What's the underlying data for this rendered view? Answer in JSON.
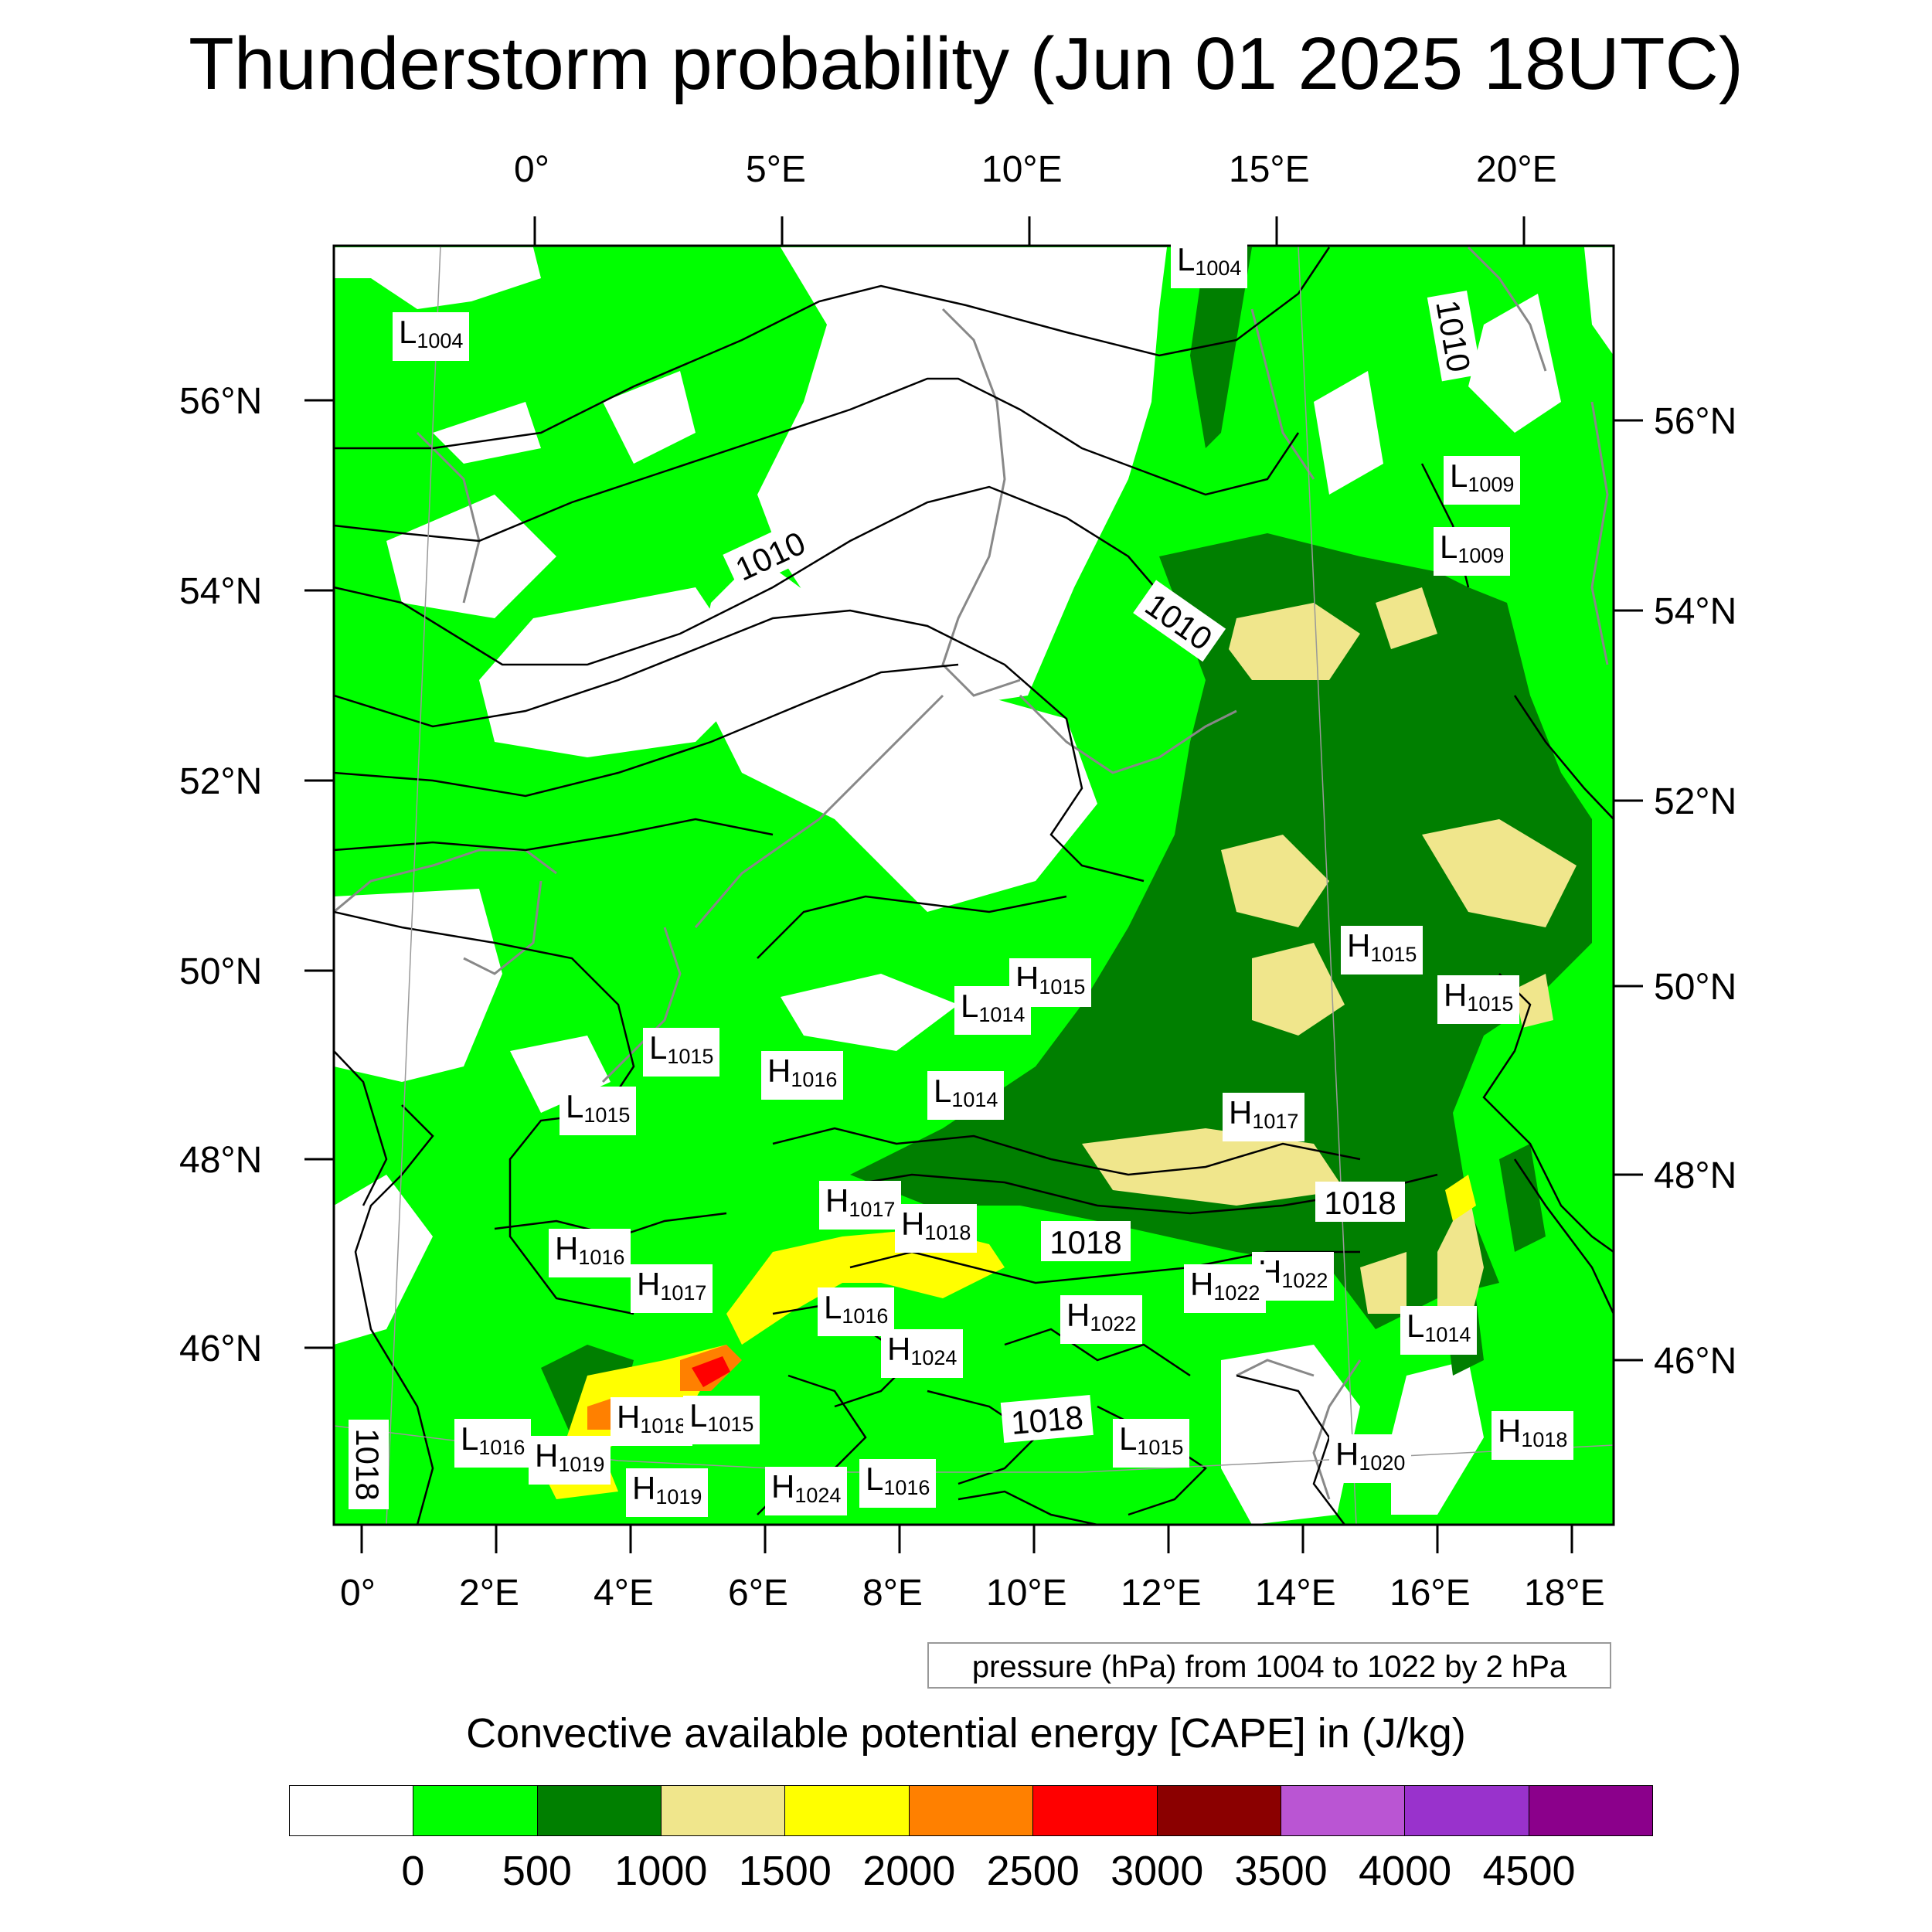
{
  "title": "Thunderstorm probability (Jun 01 2025 18UTC)",
  "axes": {
    "top_lon": [
      "0°",
      "5°E",
      "10°E",
      "15°E",
      "20°E"
    ],
    "bottom_lon": [
      "0°",
      "2°E",
      "4°E",
      "6°E",
      "8°E",
      "10°E",
      "12°E",
      "14°E",
      "16°E",
      "18°E"
    ],
    "left_lat": [
      "56°N",
      "54°N",
      "52°N",
      "50°N",
      "48°N",
      "46°N"
    ],
    "right_lat": [
      "56°N",
      "54°N",
      "52°N",
      "50°N",
      "48°N",
      "46°N"
    ]
  },
  "pressure_note": "pressure (hPa) from 1004 to 1022 by 2 hPa",
  "contour_labels": [
    "1010",
    "1010",
    "1010",
    "1018",
    "1018",
    "1018",
    "1018"
  ],
  "pressure_centers": [
    {
      "type": "L",
      "value": "1004"
    },
    {
      "type": "L",
      "value": "1004"
    },
    {
      "type": "L",
      "value": "1009"
    },
    {
      "type": "L",
      "value": "1009"
    },
    {
      "type": "H",
      "value": "1015"
    },
    {
      "type": "H",
      "value": "1015"
    },
    {
      "type": "H",
      "value": "1015"
    },
    {
      "type": "L",
      "value": "1014"
    },
    {
      "type": "L",
      "value": "1015"
    },
    {
      "type": "H",
      "value": "1016"
    },
    {
      "type": "L",
      "value": "1014"
    },
    {
      "type": "L",
      "value": "1015"
    },
    {
      "type": "H",
      "value": "1017"
    },
    {
      "type": "H",
      "value": "1017"
    },
    {
      "type": "H",
      "value": "1018"
    },
    {
      "type": "H",
      "value": "1016"
    },
    {
      "type": "H",
      "value": "1017"
    },
    {
      "type": "H",
      "value": "1022"
    },
    {
      "type": "H",
      "value": "1022"
    },
    {
      "type": "L",
      "value": "1016"
    },
    {
      "type": "H",
      "value": "1022"
    },
    {
      "type": "L",
      "value": "1014"
    },
    {
      "type": "H",
      "value": "1024"
    },
    {
      "type": "H",
      "value": "1018"
    },
    {
      "type": "L",
      "value": "1015"
    },
    {
      "type": "L",
      "value": "1016"
    },
    {
      "type": "H",
      "value": "1019"
    },
    {
      "type": "H",
      "value": "1019"
    },
    {
      "type": "H",
      "value": "1024"
    },
    {
      "type": "L",
      "value": "1016"
    },
    {
      "type": "L",
      "value": "1015"
    },
    {
      "type": "H",
      "value": "1020"
    },
    {
      "type": "H",
      "value": "1018"
    }
  ],
  "colorbar": {
    "title": "Convective available potential energy [CAPE] in (J/kg)",
    "colors": [
      "#ffffff",
      "#00ff00",
      "#007f00",
      "#f0e68c",
      "#ffff00",
      "#ff8000",
      "#ff0000",
      "#8b0000",
      "#ba55d3",
      "#9932cc",
      "#8b008b"
    ],
    "labels": [
      "0",
      "500",
      "1000",
      "1500",
      "2000",
      "2500",
      "3000",
      "3500",
      "4000",
      "4500"
    ]
  }
}
